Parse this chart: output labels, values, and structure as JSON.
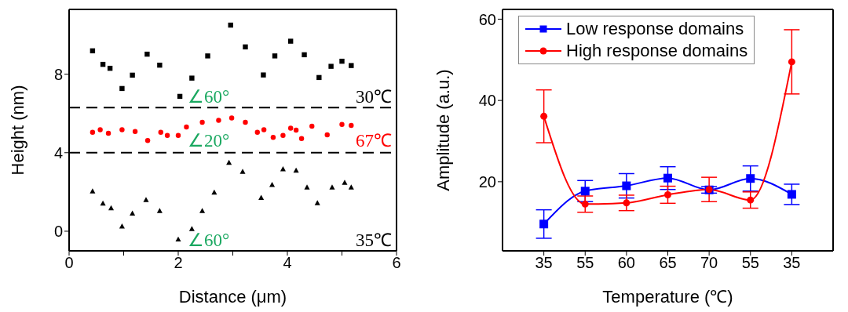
{
  "chart_data": [
    {
      "type": "scatter",
      "xlabel": "Distance (μm)",
      "ylabel": "Height (nm)",
      "xlim": [
        0,
        6
      ],
      "ylim": [
        -1,
        11.3
      ],
      "xticks": [
        0,
        {
          "value": 1,
          "label": null
        },
        2,
        {
          "value": 3,
          "label": null
        },
        4,
        {
          "value": 5,
          "label": null
        },
        6
      ],
      "yticks": [
        0,
        4,
        8
      ],
      "series": [
        {
          "name": "30℃",
          "color": "#000000",
          "marker": "square",
          "x": [
            0.43,
            0.62,
            0.75,
            0.97,
            1.16,
            1.43,
            1.66,
            2.03,
            2.25,
            2.54,
            2.96,
            3.23,
            3.56,
            3.77,
            4.06,
            4.31,
            4.58,
            4.8,
            5.0,
            5.17
          ],
          "values": [
            9.19,
            8.5,
            8.3,
            7.27,
            7.95,
            9.02,
            8.46,
            6.87,
            7.8,
            8.93,
            10.5,
            9.39,
            7.96,
            8.93,
            9.68,
            8.99,
            7.83,
            8.4,
            8.66,
            8.44
          ]
        },
        {
          "name": "67℃",
          "color": "#ff0000",
          "marker": "circle",
          "x": [
            0.43,
            0.57,
            0.72,
            0.97,
            1.21,
            1.44,
            1.68,
            1.8,
            2.0,
            2.15,
            2.44,
            2.74,
            2.98,
            3.23,
            3.45,
            3.57,
            3.74,
            3.92,
            4.06,
            4.16,
            4.26,
            4.45,
            4.73,
            5.0,
            5.17
          ],
          "values": [
            5.04,
            5.17,
            4.99,
            5.17,
            5.08,
            4.62,
            5.04,
            4.88,
            4.88,
            5.31,
            5.55,
            5.65,
            5.77,
            5.55,
            5.04,
            5.17,
            4.78,
            4.88,
            5.25,
            5.15,
            4.72,
            5.35,
            4.91,
            5.44,
            5.39
          ]
        },
        {
          "name": "35℃",
          "color": "#000000",
          "marker": "triangle",
          "x": [
            0.43,
            0.62,
            0.77,
            0.97,
            1.16,
            1.41,
            1.66,
            2.0,
            2.25,
            2.44,
            2.66,
            2.93,
            3.18,
            3.52,
            3.72,
            3.92,
            4.16,
            4.36,
            4.55,
            4.82,
            5.05,
            5.17
          ],
          "values": [
            2.03,
            1.41,
            1.17,
            0.24,
            0.9,
            1.59,
            1.03,
            -0.42,
            0.11,
            1.03,
            1.97,
            3.49,
            3.03,
            1.7,
            2.36,
            3.16,
            3.09,
            2.23,
            1.43,
            2.23,
            2.47,
            2.23
          ]
        }
      ],
      "ref_lines": [
        {
          "axis": "y",
          "value": 6.3,
          "color": "#000000",
          "line_style": "dashed"
        },
        {
          "axis": "y",
          "value": 4.0,
          "color": "#000000",
          "line_style": "dashed"
        }
      ],
      "annotations": [
        "∠60°",
        "∠20°",
        "∠60°"
      ]
    },
    {
      "type": "line",
      "xlabel": "Temperature (℃)",
      "ylabel": "Amplitude (a.u.)",
      "categories": [
        "35",
        "55",
        "60",
        "65",
        "70",
        "55",
        "35"
      ],
      "ylim": [
        3,
        62.4
      ],
      "yticks": [
        20,
        40,
        60
      ],
      "legend": "top left",
      "series": [
        {
          "name": "Low response domains",
          "color": "#0000ff",
          "marker": "square",
          "values": [
            9.6,
            17.7,
            19.0,
            20.9,
            18.0,
            20.8,
            16.9
          ],
          "errors": [
            3.5,
            2.6,
            3.0,
            2.8,
            0.8,
            3.1,
            2.5
          ]
        },
        {
          "name": "High response domains",
          "color": "#ff0000",
          "marker": "circle",
          "values": [
            36.1,
            14.5,
            14.8,
            16.8,
            18.1,
            15.5,
            49.5
          ],
          "errors": [
            6.5,
            2.0,
            1.9,
            2.1,
            3.0,
            2.0,
            7.9
          ]
        }
      ]
    }
  ]
}
